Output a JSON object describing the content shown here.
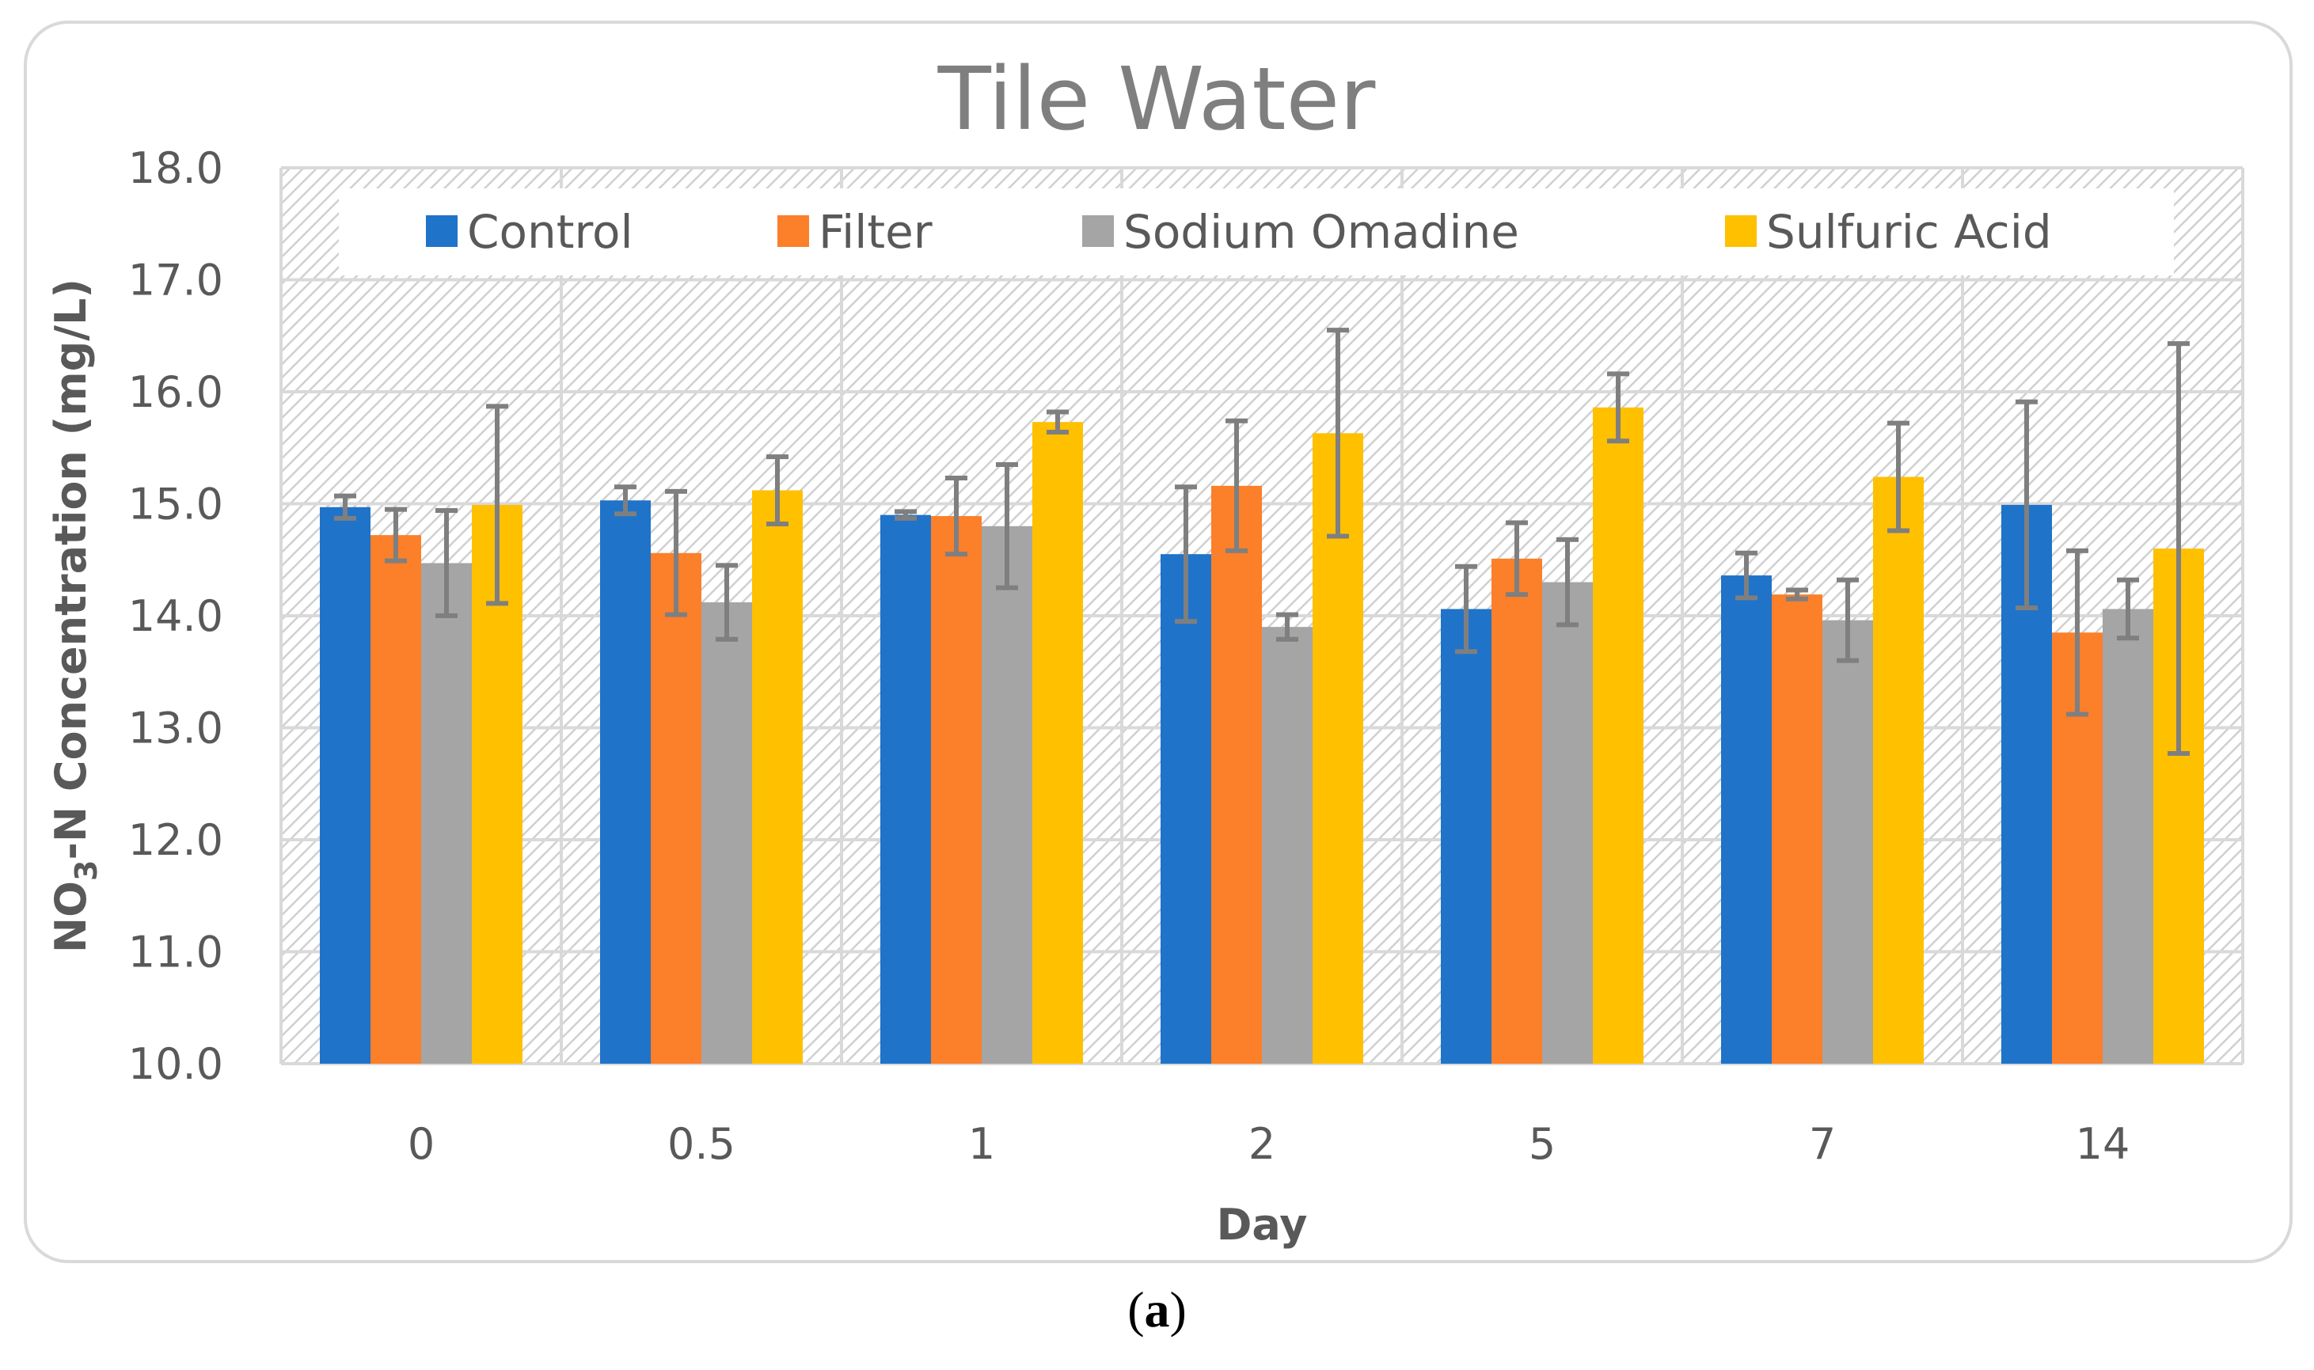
{
  "chart_data": {
    "type": "bar",
    "title": "Tile Water",
    "xlabel": "Day",
    "ylabel_parts": [
      "NO",
      "3",
      "-N Concentration (mg/L)"
    ],
    "ylim": [
      10.0,
      18.0
    ],
    "ytick_step": 1.0,
    "ytick_labels": [
      "10.0",
      "11.0",
      "12.0",
      "13.0",
      "14.0",
      "15.0",
      "16.0",
      "17.0",
      "18.0"
    ],
    "grid": true,
    "legend_position": "top",
    "categories": [
      "0",
      "0.5",
      "1",
      "2",
      "5",
      "7",
      "14"
    ],
    "series": [
      {
        "name": "Control",
        "color": "#1f73c9",
        "values": [
          14.97,
          15.03,
          14.9,
          14.55,
          14.06,
          14.36,
          14.99
        ],
        "errors": [
          0.1,
          0.12,
          0.03,
          0.6,
          0.38,
          0.2,
          0.92
        ]
      },
      {
        "name": "Filter",
        "color": "#fc7f2a",
        "values": [
          14.72,
          14.56,
          14.89,
          15.16,
          14.51,
          14.19,
          13.85
        ],
        "errors": [
          0.23,
          0.55,
          0.34,
          0.58,
          0.32,
          0.04,
          0.73
        ]
      },
      {
        "name": "Sodium Omadine",
        "color": "#a5a5a5",
        "values": [
          14.47,
          14.12,
          14.8,
          13.9,
          14.3,
          13.96,
          14.06
        ],
        "errors": [
          0.47,
          0.33,
          0.55,
          0.11,
          0.38,
          0.36,
          0.26
        ]
      },
      {
        "name": "Sulfuric Acid",
        "color": "#ffc000",
        "values": [
          14.99,
          15.12,
          15.73,
          15.63,
          15.86,
          15.24,
          14.6
        ],
        "errors": [
          0.88,
          0.3,
          0.09,
          0.92,
          0.3,
          0.48,
          1.83
        ]
      }
    ]
  },
  "caption": {
    "open": "(",
    "label": "a",
    "close": ")"
  }
}
